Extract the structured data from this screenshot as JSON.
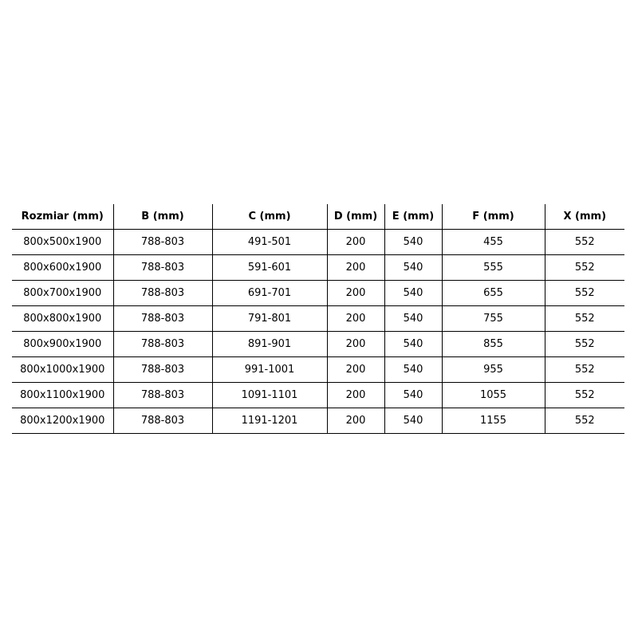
{
  "table": {
    "headers": [
      "Rozmiar (mm)",
      "B (mm)",
      "C (mm)",
      "D (mm)",
      "E (mm)",
      "F (mm)",
      "X (mm)"
    ],
    "rows": [
      [
        "800x500x1900",
        "788-803",
        "491-501",
        "200",
        "540",
        "455",
        "552"
      ],
      [
        "800x600x1900",
        "788-803",
        "591-601",
        "200",
        "540",
        "555",
        "552"
      ],
      [
        "800x700x1900",
        "788-803",
        "691-701",
        "200",
        "540",
        "655",
        "552"
      ],
      [
        "800x800x1900",
        "788-803",
        "791-801",
        "200",
        "540",
        "755",
        "552"
      ],
      [
        "800x900x1900",
        "788-803",
        "891-901",
        "200",
        "540",
        "855",
        "552"
      ],
      [
        "800x1000x1900",
        "788-803",
        "991-1001",
        "200",
        "540",
        "955",
        "552"
      ],
      [
        "800x1100x1900",
        "788-803",
        "1091-1101",
        "200",
        "540",
        "1055",
        "552"
      ],
      [
        "800x1200x1900",
        "788-803",
        "1191-1201",
        "200",
        "540",
        "1155",
        "552"
      ]
    ]
  }
}
